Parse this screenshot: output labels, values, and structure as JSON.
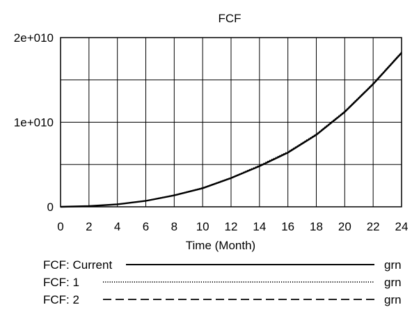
{
  "chart_data": {
    "type": "line",
    "title": "FCF",
    "xlabel": "Time (Month)",
    "ylabel": "",
    "xlim": [
      0,
      24
    ],
    "ylim": [
      0,
      20000000000
    ],
    "x_ticks": [
      "0",
      "2",
      "4",
      "6",
      "8",
      "10",
      "12",
      "14",
      "16",
      "18",
      "20",
      "22",
      "24"
    ],
    "y_ticks": [
      "0",
      "1e+010",
      "2e+010"
    ],
    "grid": true,
    "x": [
      0,
      2,
      4,
      6,
      8,
      10,
      12,
      14,
      16,
      18,
      20,
      22,
      24
    ],
    "series": [
      {
        "name": "FCF: Current",
        "unit": "grn",
        "style": "solid",
        "values": [
          0,
          80000000,
          300000000,
          700000000,
          1350000000,
          2200000000,
          3400000000,
          4800000000,
          6400000000,
          8500000000,
          11200000000,
          14500000000,
          18200000000
        ]
      },
      {
        "name": "FCF: 1",
        "unit": "grn",
        "style": "dotted",
        "values": [
          0,
          80000000,
          300000000,
          720000000,
          1380000000,
          2250000000,
          3450000000,
          4900000000,
          6500000000,
          8600000000,
          11300000000,
          14600000000,
          18300000000
        ]
      },
      {
        "name": "FCF: 2",
        "unit": "grn",
        "style": "dashed",
        "values": [
          0,
          80000000,
          300000000,
          710000000,
          1360000000,
          2220000000,
          3420000000,
          4850000000,
          6450000000,
          8550000000,
          11250000000,
          14550000000,
          18250000000
        ]
      }
    ],
    "color": "#000000"
  }
}
